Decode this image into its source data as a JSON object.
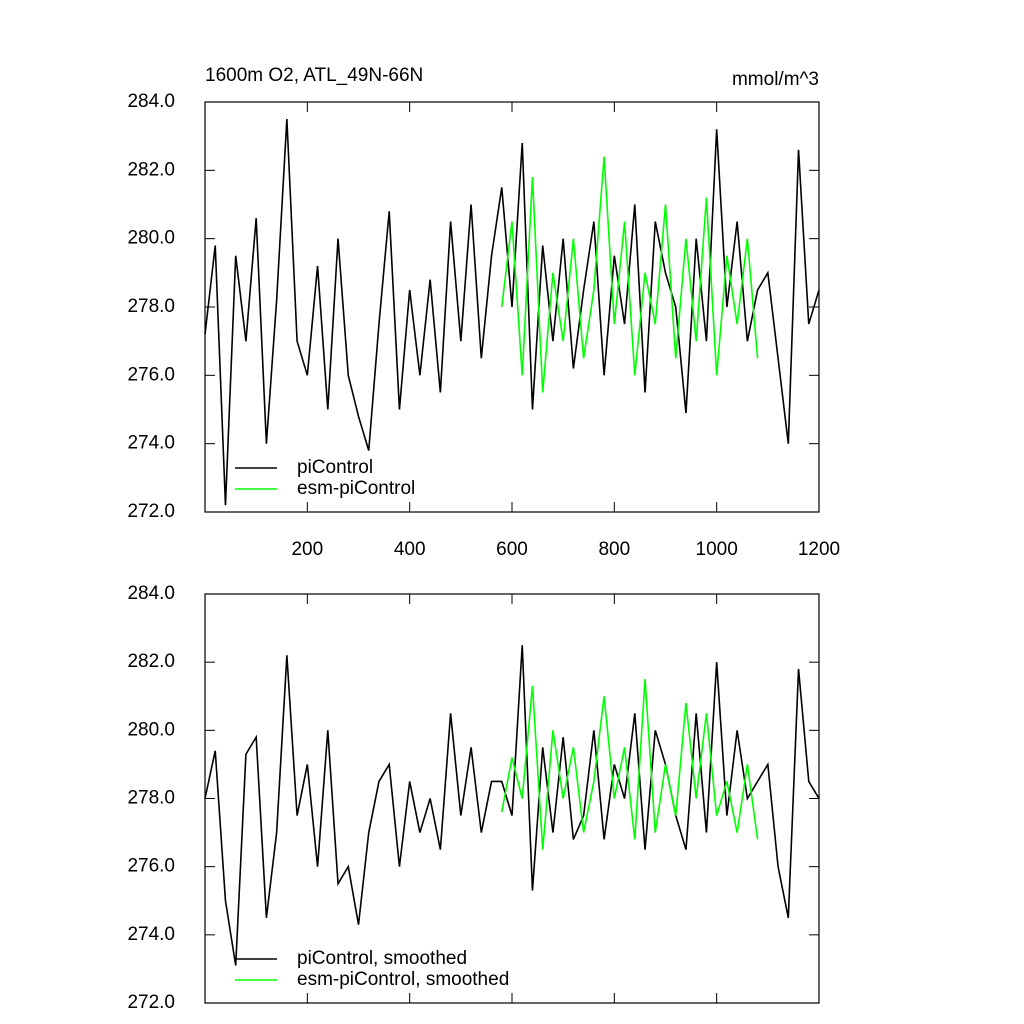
{
  "chart_data": [
    {
      "type": "line",
      "title": "1600m O2, ATL_49N-66N",
      "units": "mmol/m^3",
      "xlim": [
        0,
        1200
      ],
      "xticks": [
        200,
        400,
        600,
        800,
        1000,
        1200
      ],
      "ylim": [
        272,
        284
      ],
      "yticks": [
        {
          "value": 272,
          "label": "272.0"
        },
        {
          "value": 274,
          "label": "274.0"
        },
        {
          "value": 276,
          "label": "276.0"
        },
        {
          "value": 278,
          "label": "278.0"
        },
        {
          "value": 280,
          "label": "280.0"
        },
        {
          "value": 282,
          "label": "282.0"
        },
        {
          "value": 284,
          "label": "284.0"
        }
      ],
      "legend": "lower left",
      "series": [
        {
          "name": "piControl",
          "color": "#000000",
          "x": [
            0,
            20,
            40,
            60,
            80,
            100,
            120,
            140,
            160,
            180,
            200,
            220,
            240,
            260,
            280,
            300,
            320,
            340,
            360,
            380,
            400,
            420,
            440,
            460,
            480,
            500,
            520,
            540,
            560,
            580,
            600,
            620,
            640,
            660,
            680,
            700,
            720,
            740,
            760,
            780,
            800,
            820,
            840,
            860,
            880,
            900,
            920,
            940,
            960,
            980,
            1000,
            1020,
            1040,
            1060,
            1080,
            1100,
            1120,
            1140,
            1160,
            1180,
            1200
          ],
          "values": [
            277.2,
            279.8,
            272.2,
            279.5,
            277.0,
            280.6,
            274.0,
            278.2,
            283.5,
            277.0,
            276.0,
            279.2,
            275.0,
            280.0,
            276.0,
            274.8,
            273.8,
            277.5,
            280.8,
            275.0,
            278.5,
            276.0,
            278.8,
            275.5,
            280.5,
            277.0,
            281.0,
            276.5,
            279.5,
            281.5,
            278.0,
            282.8,
            275.0,
            279.8,
            277.0,
            280.0,
            276.2,
            278.5,
            280.5,
            276.0,
            279.5,
            277.5,
            281.0,
            275.5,
            280.5,
            279.0,
            278.0,
            274.9,
            280.0,
            277.0,
            283.2,
            278.0,
            280.5,
            277.0,
            278.5,
            279.0,
            276.5,
            274.0,
            282.6,
            277.5,
            278.5
          ]
        },
        {
          "name": "esm-piControl",
          "color": "#00ff00",
          "x": [
            580,
            600,
            620,
            640,
            660,
            680,
            700,
            720,
            740,
            760,
            780,
            800,
            820,
            840,
            860,
            880,
            900,
            920,
            940,
            960,
            980,
            1000,
            1020,
            1040,
            1060,
            1080
          ],
          "values": [
            278.0,
            280.5,
            276.0,
            281.8,
            275.5,
            279.0,
            277.0,
            280.0,
            276.5,
            278.5,
            282.4,
            277.5,
            280.5,
            276.0,
            279.0,
            277.5,
            281.0,
            276.5,
            280.0,
            277.0,
            281.2,
            276.0,
            279.5,
            277.5,
            280.0,
            276.5
          ]
        }
      ]
    },
    {
      "type": "line",
      "xlim": [
        0,
        1200
      ],
      "ylim": [
        272,
        284
      ],
      "yticks": [
        {
          "value": 272,
          "label": "272.0"
        },
        {
          "value": 274,
          "label": "274.0"
        },
        {
          "value": 276,
          "label": "276.0"
        },
        {
          "value": 278,
          "label": "278.0"
        },
        {
          "value": 280,
          "label": "280.0"
        },
        {
          "value": 282,
          "label": "282.0"
        },
        {
          "value": 284,
          "label": "284.0"
        }
      ],
      "legend": "lower left",
      "series": [
        {
          "name": "piControl, smoothed",
          "color": "#000000",
          "x": [
            0,
            20,
            40,
            60,
            80,
            100,
            120,
            140,
            160,
            180,
            200,
            220,
            240,
            260,
            280,
            300,
            320,
            340,
            360,
            380,
            400,
            420,
            440,
            460,
            480,
            500,
            520,
            540,
            560,
            580,
            600,
            620,
            640,
            660,
            680,
            700,
            720,
            740,
            760,
            780,
            800,
            820,
            840,
            860,
            880,
            900,
            920,
            940,
            960,
            980,
            1000,
            1020,
            1040,
            1060,
            1080,
            1100,
            1120,
            1140,
            1160,
            1180,
            1200
          ],
          "values": [
            278.0,
            279.4,
            275.0,
            273.1,
            279.3,
            279.8,
            274.5,
            277.0,
            282.2,
            277.5,
            279.0,
            276.0,
            280.0,
            275.5,
            276.0,
            274.3,
            277.0,
            278.5,
            279.0,
            276.0,
            278.5,
            277.0,
            278.0,
            276.5,
            280.5,
            277.5,
            279.5,
            277.0,
            278.5,
            278.5,
            277.5,
            282.5,
            275.3,
            279.5,
            277.0,
            279.8,
            276.8,
            277.5,
            280.0,
            276.8,
            279.0,
            278.0,
            280.5,
            276.5,
            280.0,
            279.0,
            277.5,
            276.5,
            280.5,
            277.0,
            282.0,
            277.5,
            280.0,
            278.0,
            278.5,
            279.0,
            276.0,
            274.5,
            281.8,
            278.5,
            278.0
          ]
        },
        {
          "name": "esm-piControl, smoothed",
          "color": "#00ff00",
          "x": [
            580,
            600,
            620,
            640,
            660,
            680,
            700,
            720,
            740,
            760,
            780,
            800,
            820,
            840,
            860,
            880,
            900,
            920,
            940,
            960,
            980,
            1000,
            1020,
            1040,
            1060,
            1080
          ],
          "values": [
            277.6,
            279.2,
            278.0,
            281.3,
            276.5,
            280.0,
            278.0,
            279.5,
            277.0,
            278.5,
            281.0,
            278.0,
            279.5,
            276.8,
            281.5,
            277.0,
            279.0,
            277.5,
            280.8,
            278.0,
            280.5,
            277.5,
            278.5,
            277.0,
            279.0,
            276.8
          ]
        }
      ]
    }
  ]
}
